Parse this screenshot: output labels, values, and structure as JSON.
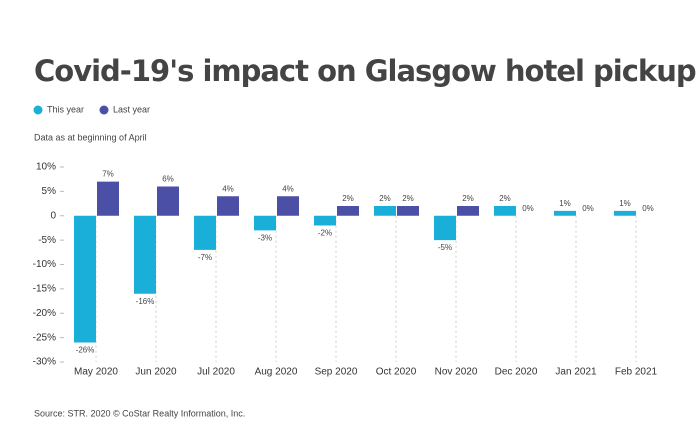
{
  "chart_data": {
    "type": "bar",
    "title": "Covid-19's impact on Glasgow hotel pickup",
    "subtitle": "Data as at beginning of April",
    "source": "Source: STR. 2020 © CoStar Realty Information, Inc.",
    "categories": [
      "May 2020",
      "Jun 2020",
      "Jul 2020",
      "Aug 2020",
      "Sep 2020",
      "Oct 2020",
      "Nov 2020",
      "Dec 2020",
      "Jan 2021",
      "Feb 2021"
    ],
    "series": [
      {
        "name": "This year",
        "color": "#1aafd8",
        "values": [
          -26,
          -16,
          -7,
          -3,
          -2,
          2,
          -5,
          2,
          1,
          1
        ],
        "value_labels": [
          "-26%",
          "-16%",
          "-7%",
          "-3%",
          "-2%",
          "2%",
          "-5%",
          "2%",
          "1%",
          "1%"
        ]
      },
      {
        "name": "Last year",
        "color": "#4b4fa6",
        "values": [
          7,
          6,
          4,
          4,
          2,
          2,
          2,
          0,
          0,
          0
        ],
        "value_labels": [
          "7%",
          "6%",
          "4%",
          "4%",
          "2%",
          "2%",
          "2%",
          "0%",
          "0%",
          "0%"
        ]
      }
    ],
    "ylim": [
      -30,
      10
    ],
    "yticks": [
      {
        "value": 10,
        "label": "10%"
      },
      {
        "value": 5,
        "label": "5%"
      },
      {
        "value": 0,
        "label": "0"
      },
      {
        "value": -5,
        "label": "-5%"
      },
      {
        "value": -10,
        "label": "-10%"
      },
      {
        "value": -15,
        "label": "-15%"
      },
      {
        "value": -20,
        "label": "-20%"
      },
      {
        "value": -25,
        "label": "-25%"
      },
      {
        "value": -30,
        "label": "-30%"
      }
    ]
  }
}
